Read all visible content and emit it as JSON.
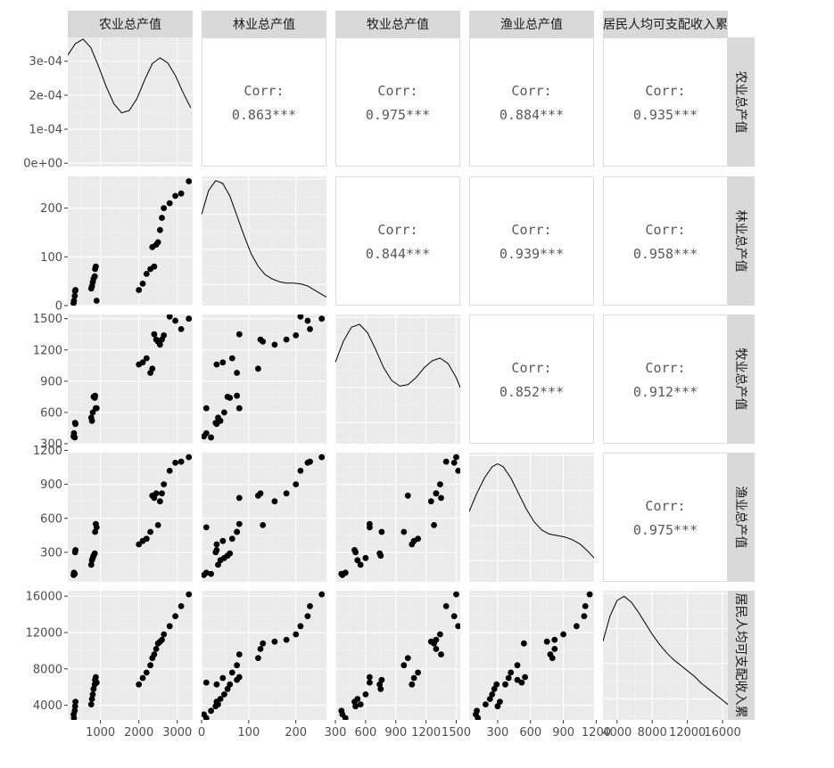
{
  "chart_data": {
    "type": "scatter",
    "subtype": "scatterplot-matrix",
    "variables": [
      "农业总产值",
      "林业总产值",
      "牧业总产值",
      "渔业总产值",
      "居民人均可支配收入累"
    ],
    "upper_panels_label": "Corr:",
    "correlations": [
      {
        "row": 0,
        "col": 1,
        "value": "0.863***"
      },
      {
        "row": 0,
        "col": 2,
        "value": "0.975***"
      },
      {
        "row": 0,
        "col": 3,
        "value": "0.884***"
      },
      {
        "row": 0,
        "col": 4,
        "value": "0.935***"
      },
      {
        "row": 1,
        "col": 2,
        "value": "0.844***"
      },
      {
        "row": 1,
        "col": 3,
        "value": "0.939***"
      },
      {
        "row": 1,
        "col": 4,
        "value": "0.958***"
      },
      {
        "row": 2,
        "col": 3,
        "value": "0.852***"
      },
      {
        "row": 2,
        "col": 4,
        "value": "0.912***"
      },
      {
        "row": 3,
        "col": 4,
        "value": "0.975***"
      }
    ],
    "ranges": [
      [
        150,
        3400
      ],
      [
        0,
        265
      ],
      [
        300,
        1540
      ],
      [
        40,
        1180
      ],
      [
        2400,
        16600
      ]
    ],
    "x_ticks": [
      {
        "values": [
          1000,
          2000,
          3000
        ],
        "labels": [
          "1000",
          "2000",
          "3000"
        ]
      },
      {
        "values": [
          0,
          100,
          200
        ],
        "labels": [
          "0",
          "100",
          "200"
        ]
      },
      {
        "values": [
          300,
          600,
          900,
          1200,
          1500
        ],
        "labels": [
          "300",
          "600",
          "900",
          "1200",
          "1500"
        ]
      },
      {
        "values": [
          300,
          600,
          900,
          1200
        ],
        "labels": [
          "300",
          "600",
          "900",
          "1200"
        ]
      },
      {
        "values": [
          4000,
          8000,
          12000,
          16000
        ],
        "labels": [
          "4000",
          "8000",
          "12000",
          "16000"
        ]
      }
    ],
    "y_ticks": [
      {
        "values": [
          0,
          0.0001,
          0.0002,
          0.0003
        ],
        "labels": [
          "0e+00",
          "1e-04",
          "2e-04",
          "3e-04"
        ]
      },
      {
        "values": [
          0,
          100,
          200
        ],
        "labels": [
          "0",
          "100",
          "200"
        ]
      },
      {
        "values": [
          300,
          600,
          900,
          1200,
          1500
        ],
        "labels": [
          "300",
          "600",
          "900",
          "1200",
          "1500"
        ]
      },
      {
        "values": [
          300,
          600,
          900,
          1200
        ],
        "labels": [
          "300",
          "600",
          "900",
          "1200"
        ]
      },
      {
        "values": [
          4000,
          8000,
          12000,
          16000
        ],
        "labels": [
          "4000",
          "8000",
          "12000",
          "16000"
        ]
      }
    ],
    "density_1_ylim": [
      -1e-05,
      0.00037
    ],
    "densities": [
      {
        "x": [
          150,
          350,
          550,
          750,
          950,
          1150,
          1350,
          1550,
          1750,
          1950,
          2150,
          2350,
          2550,
          2750,
          2950,
          3150,
          3350
        ],
        "y": [
          0.000318,
          0.000352,
          0.000365,
          0.00034,
          0.000285,
          0.000225,
          0.000175,
          0.000148,
          0.000155,
          0.00019,
          0.000245,
          0.000293,
          0.00031,
          0.000295,
          0.000258,
          0.000208,
          0.000163
        ]
      },
      {
        "x": [
          0,
          15,
          30,
          45,
          60,
          75,
          90,
          105,
          120,
          135,
          150,
          165,
          180,
          195,
          210,
          225,
          240,
          255,
          265
        ],
        "y": [
          0.75,
          0.92,
          0.99,
          0.97,
          0.88,
          0.74,
          0.6,
          0.47,
          0.38,
          0.32,
          0.29,
          0.27,
          0.26,
          0.26,
          0.255,
          0.24,
          0.21,
          0.18,
          0.16
        ]
      },
      {
        "x": [
          300,
          380,
          460,
          540,
          620,
          700,
          780,
          860,
          940,
          1020,
          1100,
          1180,
          1260,
          1340,
          1420,
          1500,
          1540
        ],
        "y": [
          0.68,
          0.83,
          0.93,
          0.95,
          0.89,
          0.77,
          0.64,
          0.55,
          0.51,
          0.52,
          0.57,
          0.64,
          0.69,
          0.71,
          0.67,
          0.57,
          0.5
        ]
      },
      {
        "x": [
          40,
          110,
          180,
          250,
          300,
          350,
          420,
          490,
          560,
          630,
          700,
          770,
          840,
          910,
          980,
          1050,
          1120,
          1180
        ],
        "y": [
          0.6,
          0.73,
          0.84,
          0.92,
          0.94,
          0.92,
          0.84,
          0.73,
          0.62,
          0.53,
          0.47,
          0.44,
          0.43,
          0.42,
          0.4,
          0.37,
          0.32,
          0.27
        ]
      },
      {
        "x": [
          2400,
          3200,
          4000,
          4800,
          5600,
          6400,
          7200,
          8000,
          8800,
          9600,
          10400,
          11200,
          12000,
          12800,
          13600,
          14400,
          15200,
          16000,
          16600
        ],
        "y": [
          0.66,
          0.84,
          0.95,
          0.98,
          0.94,
          0.87,
          0.79,
          0.71,
          0.64,
          0.58,
          0.53,
          0.49,
          0.45,
          0.41,
          0.36,
          0.32,
          0.28,
          0.24,
          0.21
        ]
      }
    ],
    "points": [
      [
        300,
        5,
        370,
        100,
        3000
      ],
      [
        310,
        10,
        400,
        120,
        2600
      ],
      [
        330,
        20,
        360,
        110,
        3400
      ],
      [
        340,
        30,
        500,
        300,
        3900
      ],
      [
        350,
        32,
        490,
        320,
        4400
      ],
      [
        760,
        35,
        550,
        190,
        4100
      ],
      [
        780,
        40,
        520,
        230,
        4700
      ],
      [
        800,
        48,
        600,
        250,
        5200
      ],
      [
        820,
        55,
        750,
        270,
        5800
      ],
      [
        850,
        60,
        740,
        290,
        6300
      ],
      [
        860,
        75,
        760,
        480,
        6800
      ],
      [
        880,
        80,
        640,
        550,
        7100
      ],
      [
        900,
        10,
        640,
        520,
        6500
      ],
      [
        2000,
        32,
        1060,
        370,
        6300
      ],
      [
        2100,
        45,
        1080,
        400,
        7000
      ],
      [
        2200,
        65,
        1120,
        420,
        7600
      ],
      [
        2300,
        75,
        980,
        480,
        8400
      ],
      [
        2350,
        120,
        1020,
        800,
        9200
      ],
      [
        2400,
        80,
        1350,
        780,
        9600
      ],
      [
        2450,
        125,
        1300,
        820,
        10200
      ],
      [
        2500,
        130,
        1280,
        540,
        10800
      ],
      [
        2550,
        155,
        1250,
        750,
        11000
      ],
      [
        2600,
        180,
        1300,
        820,
        11200
      ],
      [
        2650,
        200,
        1340,
        900,
        11800
      ],
      [
        2800,
        210,
        1520,
        1020,
        12700
      ],
      [
        2950,
        225,
        1480,
        1090,
        13800
      ],
      [
        3100,
        230,
        1400,
        1100,
        14900
      ],
      [
        3300,
        255,
        1500,
        1140,
        16200
      ]
    ]
  }
}
